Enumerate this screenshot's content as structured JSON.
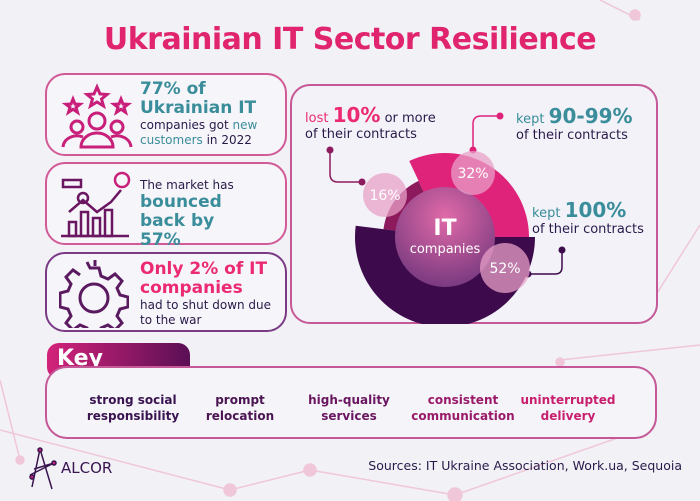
{
  "title": "Ukrainian IT Sector Resilience",
  "cards": [
    {
      "icon": "customers-stars-icon",
      "big": "77% of Ukrainian IT",
      "line1": "companies got ",
      "highlight": "new customers",
      "line2": " in 2022"
    },
    {
      "icon": "market-growth-chart-icon",
      "pre": "The market has",
      "big": "bounced back by 57%"
    },
    {
      "icon": "broken-gear-icon",
      "big": "Only 2% of IT companies",
      "post": "had to shut down due to the war"
    }
  ],
  "chart": {
    "center_line1": "IT",
    "center_line2": "companies",
    "segments": [
      {
        "value": 16,
        "label": "16%",
        "pre": "lost",
        "num": "10%",
        "post": " or more",
        "line2": "of their contracts",
        "color": "#8c1a5c"
      },
      {
        "value": 32,
        "label": "32%",
        "pre": "kept",
        "num": "90-99%",
        "line2": "of their contracts",
        "color": "#e0237a"
      },
      {
        "value": 52,
        "label": "52%",
        "pre": "kept",
        "num": "100%",
        "line2": "of their contracts",
        "color": "#3d0b4c"
      }
    ]
  },
  "key_factors_title": "Key factors:",
  "factors": [
    "strong social responsibility",
    "prompt relocation",
    "high-quality services",
    "consistent communication",
    "uninterrupted delivery"
  ],
  "factor_colors": [
    "#3a1450",
    "#4a1452",
    "#6a1660",
    "#9a1a6a",
    "#c81f6e"
  ],
  "logo": "ALCOR",
  "sources": "Sources: IT Ukraine Association, Work.ua, Sequoia"
}
